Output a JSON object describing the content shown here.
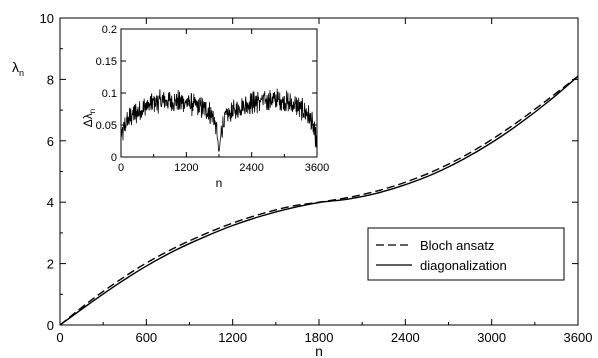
{
  "chart_data": [
    {
      "type": "line",
      "title": "",
      "xlabel": "n",
      "ylabel": "λ",
      "ylabel_subscript": "n",
      "xlim": [
        0,
        3600
      ],
      "ylim": [
        0,
        10
      ],
      "xticks": [
        0,
        600,
        1200,
        1800,
        2400,
        3000,
        3600
      ],
      "yticks": [
        0,
        2,
        4,
        6,
        8,
        10
      ],
      "grid": false,
      "legend": "center-right",
      "series": [
        {
          "name": "Bloch ansatz",
          "style": "dashed",
          "x": [
            0,
            200,
            400,
            600,
            800,
            1000,
            1200,
            1400,
            1600,
            1800,
            2000,
            2200,
            2400,
            2600,
            2800,
            3000,
            3200,
            3400,
            3600
          ],
          "y": [
            0,
            0.75,
            1.42,
            2.02,
            2.52,
            2.95,
            3.32,
            3.62,
            3.86,
            4.0,
            4.15,
            4.36,
            4.65,
            5.02,
            5.48,
            6.04,
            6.68,
            7.38,
            8.1
          ]
        },
        {
          "name": "diagonalization",
          "style": "solid",
          "x": [
            0,
            200,
            400,
            600,
            800,
            1000,
            1200,
            1400,
            1600,
            1800,
            2000,
            2200,
            2400,
            2600,
            2800,
            3000,
            3200,
            3400,
            3600
          ],
          "y": [
            0,
            0.68,
            1.33,
            1.92,
            2.43,
            2.86,
            3.24,
            3.55,
            3.8,
            3.99,
            4.1,
            4.29,
            4.57,
            4.93,
            5.39,
            5.94,
            6.58,
            7.3,
            8.1
          ]
        }
      ]
    },
    {
      "type": "line",
      "title": "",
      "xlabel": "n",
      "ylabel": "Δλ",
      "ylabel_subscript": "n",
      "xlim": [
        0,
        3600
      ],
      "ylim": [
        0,
        0.2
      ],
      "xticks": [
        0,
        1200,
        2400,
        3600
      ],
      "yticks": [
        0,
        0.05,
        0.1,
        0.15,
        0.2
      ],
      "ytick_labels": [
        "0",
        "0.05",
        "0.1",
        "0.15",
        "0.2"
      ],
      "grid": false,
      "series": [
        {
          "style": "solid",
          "envelope_x": [
            0,
            100,
            200,
            400,
            600,
            800,
            1000,
            1200,
            1400,
            1600,
            1700,
            1760,
            1800,
            1840,
            1900,
            2000,
            2200,
            2400,
            2600,
            2800,
            3000,
            3200,
            3400,
            3500,
            3600
          ],
          "envelope_y": [
            0.03,
            0.055,
            0.065,
            0.075,
            0.085,
            0.088,
            0.087,
            0.085,
            0.08,
            0.072,
            0.062,
            0.04,
            0.005,
            0.04,
            0.06,
            0.068,
            0.078,
            0.085,
            0.088,
            0.09,
            0.087,
            0.08,
            0.07,
            0.055,
            0.02
          ],
          "noise_amplitude": 0.014
        }
      ]
    }
  ]
}
